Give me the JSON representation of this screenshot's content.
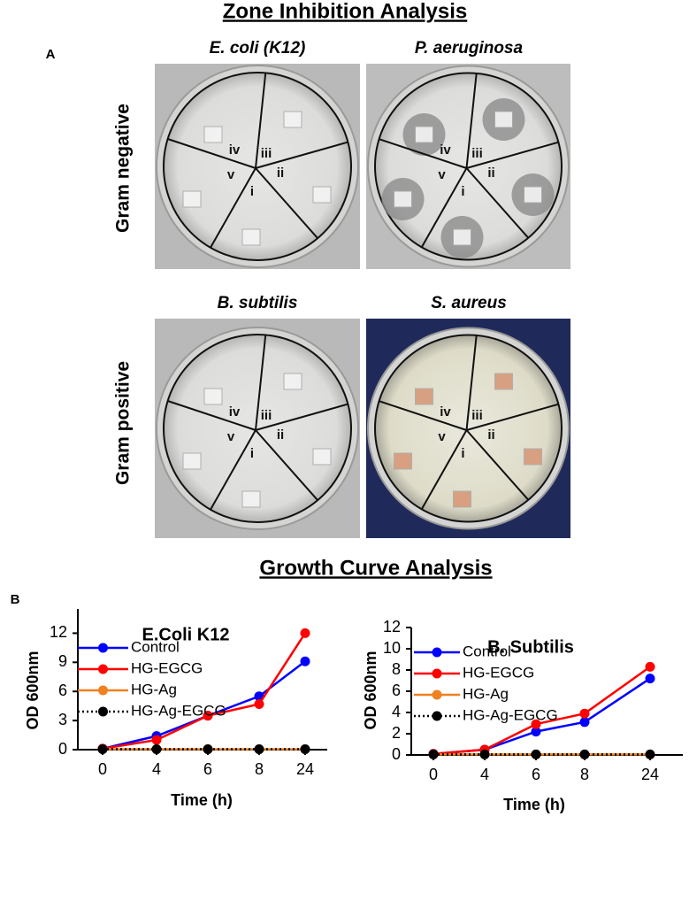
{
  "panel_a": {
    "label": "A",
    "title": "Zone Inhibition Analysis",
    "rows": [
      "Gram negative",
      "Gram positive"
    ],
    "plates": [
      "E. coli (K12)",
      "P. aeruginosa",
      "B. subtilis",
      "S. aureus"
    ],
    "sectors": [
      "i",
      "ii",
      "iii",
      "iv",
      "v"
    ]
  },
  "panel_b": {
    "label": "B",
    "title": "Growth Curve Analysis"
  },
  "chart_data": [
    {
      "type": "line",
      "title": "E.Coli K12",
      "x_label": "Time (h)",
      "y_label": "OD 600nm",
      "categories": [
        "0",
        "4",
        "6",
        "8",
        "24"
      ],
      "ylim": [
        0,
        14.5
      ],
      "yticks": [
        0,
        3,
        6,
        9,
        12
      ],
      "series": [
        {
          "name": "Control",
          "color": "#0000ff",
          "line_style": "solid",
          "values": [
            0.1,
            1.4,
            3.5,
            5.5,
            9.1
          ]
        },
        {
          "name": "HG-EGCG",
          "color": "#ff0000",
          "line_style": "solid",
          "values": [
            0.1,
            1.0,
            3.5,
            4.7,
            12.0
          ]
        },
        {
          "name": "HG-Ag",
          "color": "#f08020",
          "line_style": "solid",
          "values": [
            0.05,
            0.05,
            0.05,
            0.05,
            0.05
          ]
        },
        {
          "name": "HG-Ag-EGCG",
          "color": "#000000",
          "line_style": "dotted",
          "values": [
            0.05,
            0.05,
            0.05,
            0.05,
            0.05
          ]
        }
      ]
    },
    {
      "type": "line",
      "title": "B. Subtilis",
      "x_label": "Time (h)",
      "y_label": "OD 600nm",
      "categories": [
        "0",
        "4",
        "6",
        "8",
        "24"
      ],
      "ylim": [
        0,
        12
      ],
      "yticks": [
        0,
        2,
        4,
        6,
        8,
        10,
        12
      ],
      "series": [
        {
          "name": "Control",
          "color": "#0000ff",
          "line_style": "solid",
          "values": [
            0.1,
            0.5,
            2.2,
            3.1,
            7.2
          ]
        },
        {
          "name": "HG-EGCG",
          "color": "#ff0000",
          "line_style": "solid",
          "values": [
            0.1,
            0.5,
            2.9,
            3.9,
            8.3
          ]
        },
        {
          "name": "HG-Ag",
          "color": "#f08020",
          "line_style": "solid",
          "values": [
            0.05,
            0.05,
            0.05,
            0.05,
            0.05
          ]
        },
        {
          "name": "HG-Ag-EGCG",
          "color": "#000000",
          "line_style": "dotted",
          "values": [
            0.05,
            0.05,
            0.05,
            0.05,
            0.05
          ]
        }
      ]
    }
  ]
}
